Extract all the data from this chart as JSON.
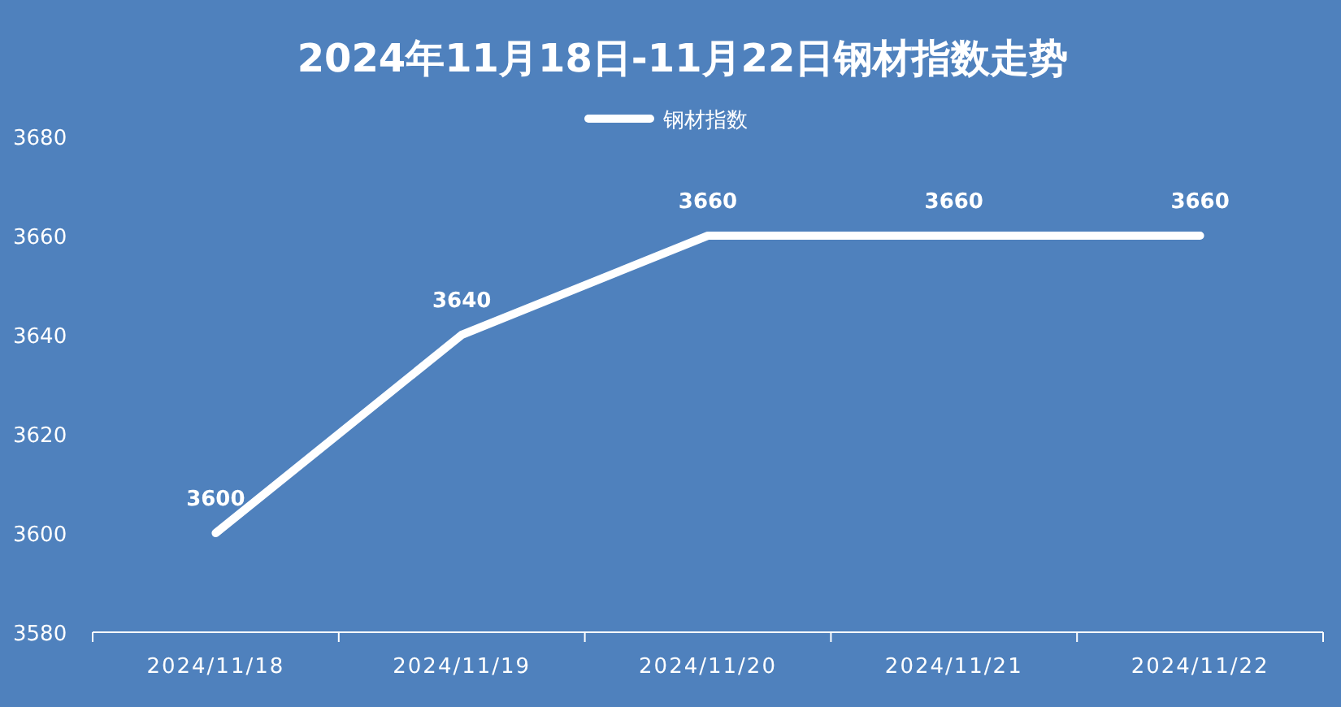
{
  "chart_data": {
    "type": "line",
    "title": "2024年11月18日-11月22日钢材指数走势",
    "categories": [
      "2024/11/18",
      "2024/11/19",
      "2024/11/20",
      "2024/11/21",
      "2024/11/22"
    ],
    "series": [
      {
        "name": "钢材指数",
        "color": "#ffffff",
        "values": [
          3600,
          3640,
          3660,
          3660,
          3660
        ]
      }
    ],
    "ylim": [
      3580,
      3680
    ],
    "yticks": [
      3580,
      3600,
      3620,
      3640,
      3660,
      3680
    ],
    "data_labels": true,
    "legend": "top"
  }
}
